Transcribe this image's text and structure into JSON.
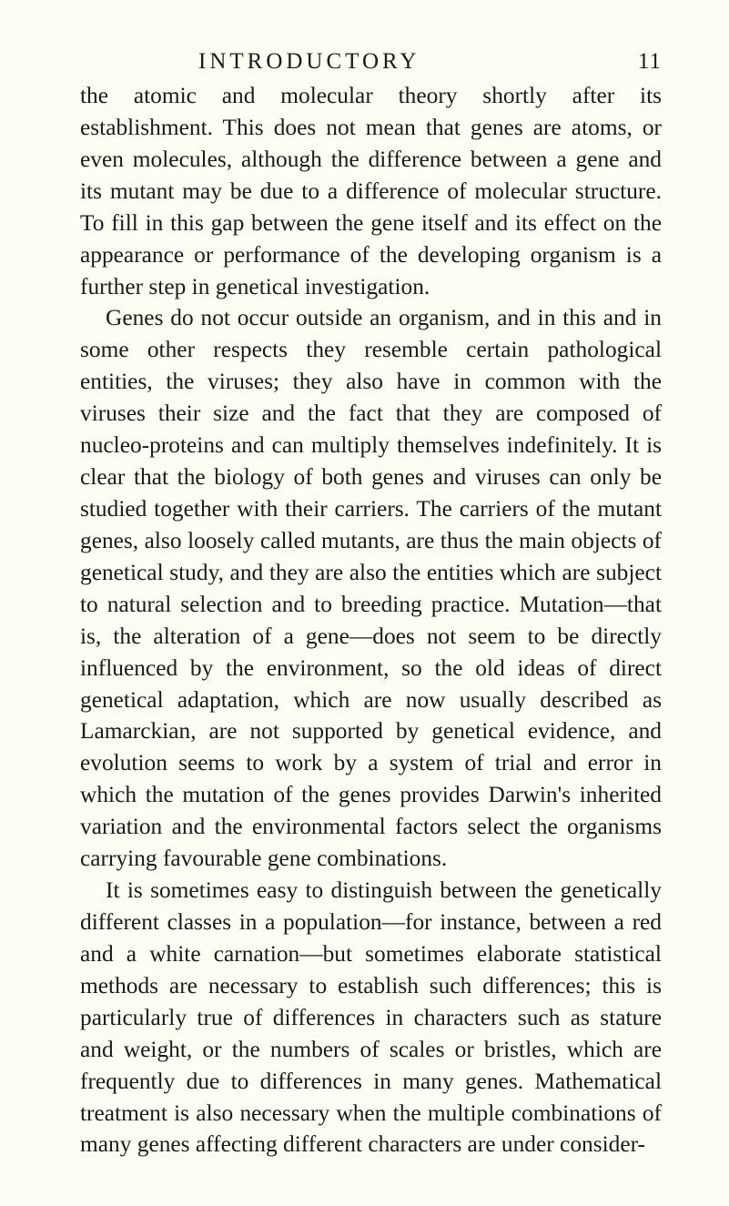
{
  "header": {
    "title": "INTRODUCTORY",
    "pageNumber": "11"
  },
  "paragraphs": [
    {
      "indent": false,
      "text": "the atomic and molecular theory shortly after its establishment. This does not mean that genes are atoms, or even molecules, although the difference between a gene and its mutant may be due to a difference of molecular structure. To fill in this gap between the gene itself and its effect on the appearance or performance of the developing organism is a further step in genetical investigation."
    },
    {
      "indent": true,
      "text": "Genes do not occur outside an organism, and in this and in some other respects they resemble certain pathological entities, the viruses; they also have in common with the viruses their size and the fact that they are composed of nucleo-proteins and can multiply themselves indefinitely. It is clear that the biology of both genes and viruses can only be studied together with their carriers. The carriers of the mutant genes, also loosely called mutants, are thus the main objects of genetical study, and they are also the entities which are subject to natural selection and to breeding practice. Mutation—that is, the alteration of a gene—does not seem to be directly influenced by the environment, so the old ideas of direct genetical adaptation, which are now usually described as Lamarckian, are not supported by genetical evidence, and evolution seems to work by a system of trial and error in which the mutation of the genes provides Darwin's inherited variation and the environmental factors select the organisms carrying favourable gene combinations."
    },
    {
      "indent": true,
      "text": "It is sometimes easy to distinguish between the genetically different classes in a population—for instance, between a red and a white carnation—but sometimes elaborate statistical methods are necessary to establish such differences; this is particularly true of differences in characters such as stature and weight, or the numbers of scales or bristles, which are frequently due to differences in many genes. Mathematical treatment is also necessary when the multiple combinations of many genes affecting different characters are under consider-"
    }
  ]
}
